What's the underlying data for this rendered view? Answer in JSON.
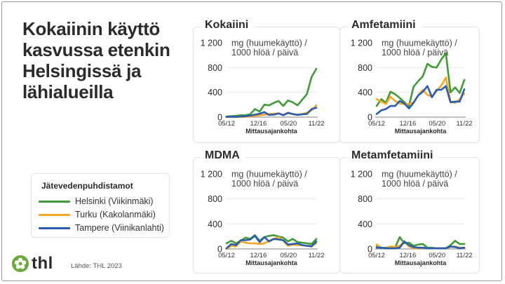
{
  "title": "Kokaiinin käyttö kasvussa etenkin Helsingissä ja lähialueilla",
  "legend": {
    "title": "Jätevedenpuhdistamot",
    "items": [
      {
        "label": "Helsinki (Viikinmäki)",
        "color": "#3f9c35"
      },
      {
        "label": "Turku (Kakolanmäki)",
        "color": "#f5a623"
      },
      {
        "label": "Tampere (Viinikanlahti)",
        "color": "#2a5db0"
      }
    ]
  },
  "logo": {
    "text": "thl",
    "icon": "thl-flower-icon",
    "color": "#6aaa3a"
  },
  "source": "Lähde: THL 2023",
  "chart_data": [
    {
      "type": "line",
      "title": "Kokaiini",
      "ylabel": "mg (huumekäyttö) / 1000 hlöä / päivä",
      "xlabel": "Mittausajankohta",
      "ylim": [
        0,
        1200
      ],
      "yticks": [
        "0",
        "400",
        "800",
        "1 200"
      ],
      "ytick_values": [
        0,
        400,
        800,
        1200
      ],
      "xticks": [
        "05/12",
        "12/16",
        "05/20",
        "11/22"
      ],
      "xtick_index": [
        0,
        7,
        14,
        21
      ],
      "grid": true,
      "series": [
        {
          "name": "Helsinki (Viikinmäki)",
          "values": [
            10,
            15,
            20,
            30,
            30,
            45,
            130,
            90,
            200,
            190,
            230,
            260,
            180,
            270,
            240,
            190,
            280,
            370,
            650,
            780
          ]
        },
        {
          "name": "Turku (Kakolanmäki)",
          "values": [
            0,
            0,
            0,
            0,
            5,
            10,
            20,
            30,
            40,
            50,
            55,
            60,
            40,
            60,
            50,
            40,
            50,
            70,
            110,
            190
          ]
        },
        {
          "name": "Tampere (Viinikanlahti)",
          "values": [
            5,
            5,
            5,
            10,
            15,
            25,
            40,
            55,
            80,
            35,
            40,
            60,
            30,
            70,
            50,
            35,
            45,
            50,
            130,
            150
          ]
        }
      ]
    },
    {
      "type": "line",
      "title": "Amfetamiini",
      "ylabel": "mg (huumekäyttö) / 1000 hlöä / päivä",
      "xlabel": "Mittausajankohta",
      "ylim": [
        0,
        1200
      ],
      "yticks": [
        "0",
        "400",
        "800",
        "1 200"
      ],
      "ytick_values": [
        0,
        400,
        800,
        1200
      ],
      "xticks": [
        "05/12",
        "12/16",
        "05/20",
        "11/22"
      ],
      "xtick_index": [
        0,
        7,
        14,
        21
      ],
      "grid": true,
      "series": [
        {
          "name": "Helsinki (Viikinmäki)",
          "values": [
            180,
            290,
            230,
            410,
            370,
            310,
            240,
            180,
            490,
            580,
            660,
            860,
            810,
            800,
            930,
            1030,
            400,
            480,
            390,
            600
          ]
        },
        {
          "name": "Turku (Kakolanmäki)",
          "values": [
            290,
            250,
            210,
            330,
            260,
            220,
            210,
            210,
            240,
            350,
            440,
            360,
            330,
            420,
            510,
            640,
            250,
            230,
            290,
            380
          ]
        },
        {
          "name": "Tampere (Viinikanlahti)",
          "values": [
            50,
            110,
            130,
            180,
            180,
            260,
            220,
            140,
            230,
            350,
            410,
            500,
            320,
            440,
            440,
            500,
            240,
            250,
            250,
            450
          ]
        }
      ]
    },
    {
      "type": "line",
      "title": "MDMA",
      "ylabel": "mg (huumekäyttö) / 1000 hlöä / päivä",
      "xlabel": "Mittausajankohta",
      "ylim": [
        0,
        1200
      ],
      "yticks": [
        "0",
        "400",
        "800",
        "1 200"
      ],
      "ytick_values": [
        0,
        400,
        800,
        1200
      ],
      "xticks": [
        "05/12",
        "12/16",
        "05/20",
        "11/22"
      ],
      "xtick_index": [
        0,
        7,
        14,
        21
      ],
      "grid": true,
      "series": [
        {
          "name": "Helsinki (Viikinmäki)",
          "values": [
            90,
            130,
            90,
            130,
            180,
            160,
            220,
            130,
            190,
            210,
            220,
            200,
            180,
            120,
            160,
            110,
            100,
            90,
            80,
            160
          ]
        },
        {
          "name": "Turku (Kakolanmäki)",
          "values": [
            0,
            50,
            40,
            120,
            100,
            90,
            90,
            80,
            90,
            130,
            160,
            190,
            130,
            50,
            70,
            60,
            60,
            50,
            50,
            90
          ]
        },
        {
          "name": "Tampere (Viinikanlahti)",
          "values": [
            10,
            80,
            60,
            140,
            140,
            150,
            210,
            110,
            190,
            120,
            160,
            150,
            140,
            70,
            80,
            90,
            60,
            50,
            40,
            120
          ]
        }
      ]
    },
    {
      "type": "line",
      "title": "Metamfetamiini",
      "ylabel": "mg (huumekäyttö) / 1000 hlöä / päivä",
      "xlabel": "Mittausajankohta",
      "ylim": [
        0,
        1200
      ],
      "yticks": [
        "0",
        "400",
        "800",
        "1 200"
      ],
      "ytick_values": [
        0,
        400,
        800,
        1200
      ],
      "xticks": [
        "05/12",
        "12/16",
        "05/20",
        "11/22"
      ],
      "xtick_index": [
        0,
        7,
        14,
        21
      ],
      "grid": true,
      "series": [
        {
          "name": "Helsinki (Viikinmäki)",
          "values": [
            40,
            10,
            20,
            30,
            20,
            190,
            90,
            100,
            50,
            70,
            80,
            20,
            20,
            10,
            10,
            10,
            60,
            130,
            80,
            80
          ]
        },
        {
          "name": "Turku (Kakolanmäki)",
          "values": [
            70,
            20,
            10,
            40,
            30,
            50,
            120,
            40,
            10,
            10,
            20,
            10,
            10,
            10,
            10,
            10,
            30,
            40,
            20,
            20
          ]
        },
        {
          "name": "Tampere (Viinikanlahti)",
          "values": [
            20,
            20,
            10,
            10,
            10,
            20,
            120,
            60,
            30,
            20,
            20,
            10,
            10,
            10,
            10,
            10,
            40,
            30,
            10,
            20
          ]
        }
      ]
    }
  ]
}
